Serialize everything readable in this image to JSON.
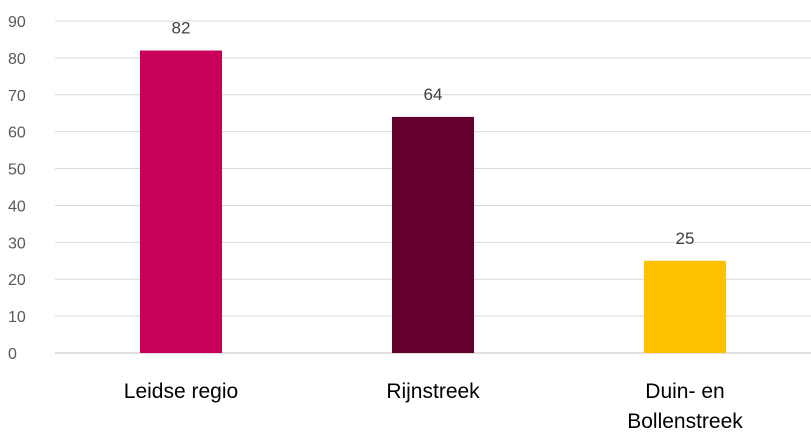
{
  "chart_data": {
    "type": "bar",
    "title": "",
    "xlabel": "",
    "ylabel": "",
    "categories": [
      {
        "lines": [
          "Leidse regio"
        ]
      },
      {
        "lines": [
          "Rijnstreek"
        ]
      },
      {
        "lines": [
          "Duin- en",
          "Bollenstreek"
        ]
      }
    ],
    "values": [
      82,
      64,
      25
    ],
    "bar_colors": [
      "#c8005a",
      "#65002e",
      "#ffc000"
    ],
    "ylim": [
      0,
      90
    ],
    "yticks": [
      0,
      10,
      20,
      30,
      40,
      50,
      60,
      70,
      80,
      90
    ],
    "grid": true,
    "legend": "none",
    "data_labels": true
  }
}
